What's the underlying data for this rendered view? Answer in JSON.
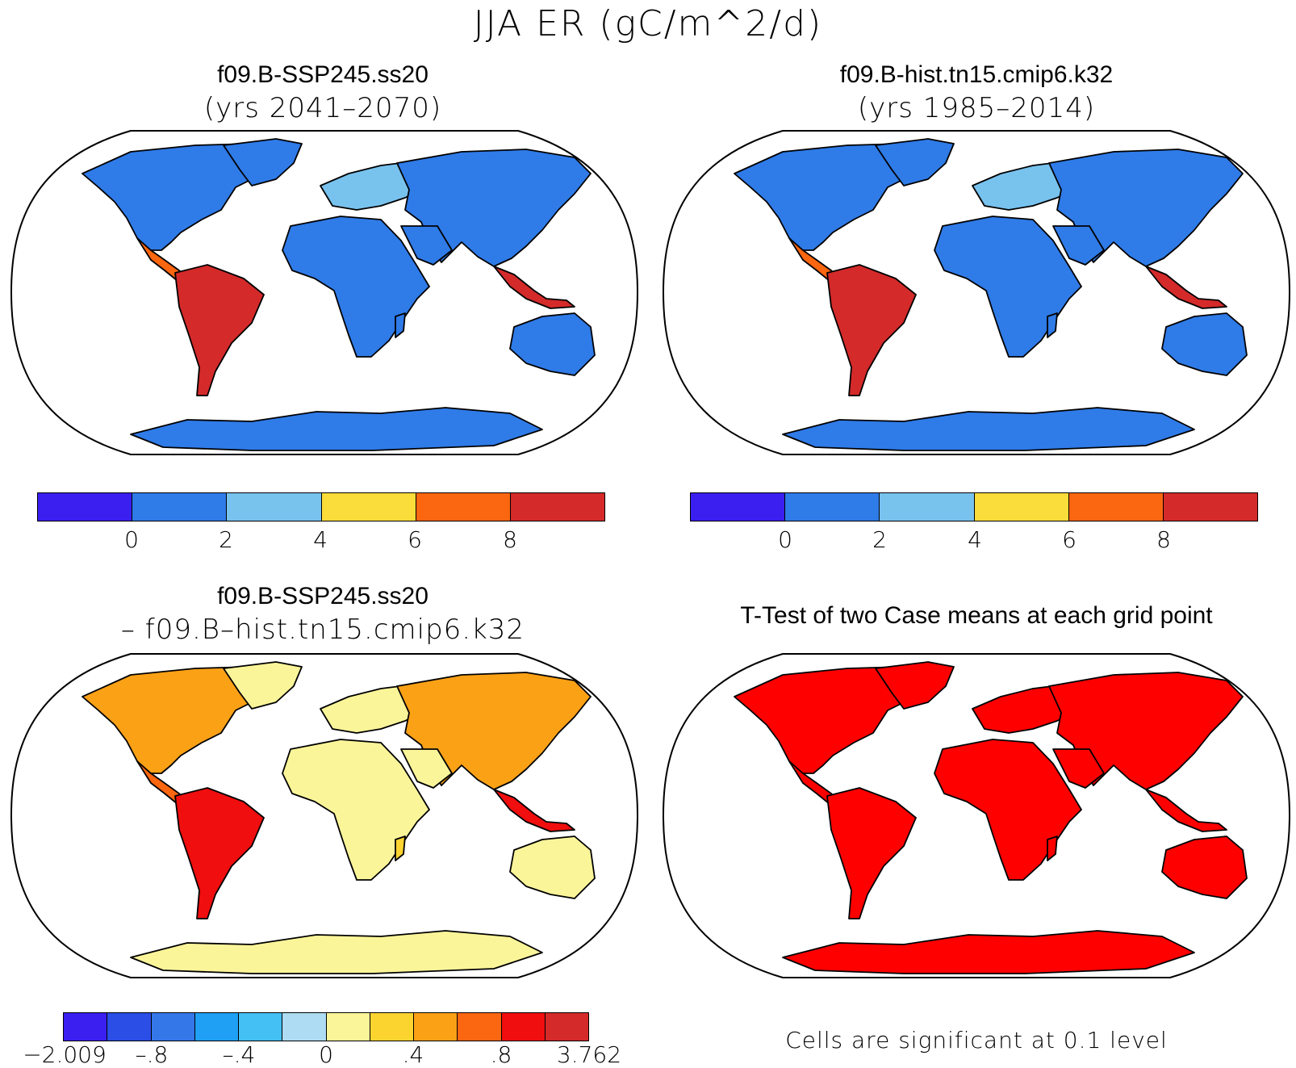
{
  "title": "JJA ER (gC/m^2/d)",
  "panels": [
    {
      "id": "p1",
      "title": "f09.B-SSP245.ss20",
      "subtitle": "(yrs 2041–2070)",
      "kind": "mean"
    },
    {
      "id": "p2",
      "title": "f09.B-hist.tn15.cmip6.k32",
      "subtitle": "(yrs 1985–2014)",
      "kind": "mean"
    },
    {
      "id": "p3",
      "title": "f09.B-SSP245.ss20",
      "subtitle": "– f09.B–hist.tn15.cmip6.k32",
      "kind": "diff"
    },
    {
      "id": "p4",
      "title": "T-Test of two Case means at each grid point",
      "subtitle": "",
      "kind": "ttest"
    }
  ],
  "colorbar_mean": {
    "colors": [
      "#3a1ff0",
      "#2f7be8",
      "#78c2ee",
      "#fadc3a",
      "#fb6610",
      "#d42a2a"
    ],
    "ticks": [
      "0",
      "2",
      "4",
      "6",
      "8"
    ]
  },
  "colorbar_diff": {
    "colors": [
      "#3a1ff0",
      "#2a4ee6",
      "#3477e9",
      "#1fa0f5",
      "#44c0f5",
      "#aedcf2",
      "#fbf59a",
      "#fcd430",
      "#fba116",
      "#fb6610",
      "#f00e0e",
      "#d42a2a"
    ],
    "ticks": [
      "−2.009",
      "–.8",
      "–.4",
      "0",
      ".4",
      ".8",
      "3.762"
    ]
  },
  "ttest_note": "Cells are significant at 0.1 level",
  "ttest_color": "#ff0000"
}
